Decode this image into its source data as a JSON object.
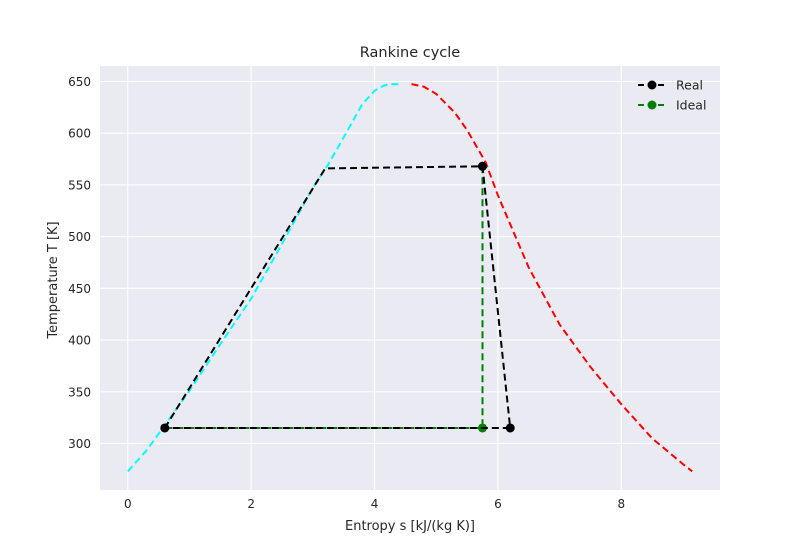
{
  "chart_data": {
    "type": "line",
    "title": "Rankine cycle",
    "xlabel": "Entropy s [kJ/(kg K)]",
    "ylabel": "Temperature T [K]",
    "xlim": [
      -0.45,
      9.6
    ],
    "ylim": [
      255,
      665
    ],
    "xticks": [
      0,
      2,
      4,
      6,
      8
    ],
    "yticks": [
      300,
      350,
      400,
      450,
      500,
      550,
      600,
      650
    ],
    "grid": true,
    "legend_position": "top-right",
    "background_color": "#eaeaf2",
    "saturation_curve": [
      {
        "side": "saturated liquid",
        "color": "#00ffff",
        "style": "dashed",
        "x": [
          0.0,
          0.3,
          0.57,
          1.0,
          1.5,
          2.0,
          2.5,
          3.0,
          3.25,
          3.5,
          3.8,
          4.0,
          4.15,
          4.25,
          4.4
        ],
        "y": [
          273,
          293,
          315,
          351,
          396,
          440,
          493,
          547,
          570,
          596,
          628,
          641,
          646,
          647.5,
          647.5
        ]
      },
      {
        "side": "saturated vapor",
        "color": "#ff0000",
        "style": "dashed",
        "x": [
          4.6,
          4.8,
          5.0,
          5.3,
          5.5,
          5.8,
          6.0,
          6.3,
          6.5,
          7.0,
          7.5,
          8.0,
          8.5,
          9.0,
          9.15
        ],
        "y": [
          647.5,
          645,
          638,
          620,
          603,
          572,
          540,
          498,
          470,
          415,
          374,
          338,
          305,
          280,
          273
        ]
      }
    ],
    "series": [
      {
        "name": "Real",
        "color": "#000000",
        "style": "dashed",
        "marker": "circle",
        "x": [
          0.6,
          3.2,
          5.75,
          6.2,
          0.6
        ],
        "y": [
          315,
          566,
          568,
          315,
          315
        ],
        "marker_indices": [
          0,
          2,
          3
        ]
      },
      {
        "name": "Ideal",
        "color": "#008000",
        "style": "dashed",
        "marker": "circle",
        "x": [
          5.75,
          5.75,
          0.6
        ],
        "y": [
          568,
          315,
          315
        ],
        "marker_indices": [
          0,
          1
        ]
      }
    ]
  }
}
